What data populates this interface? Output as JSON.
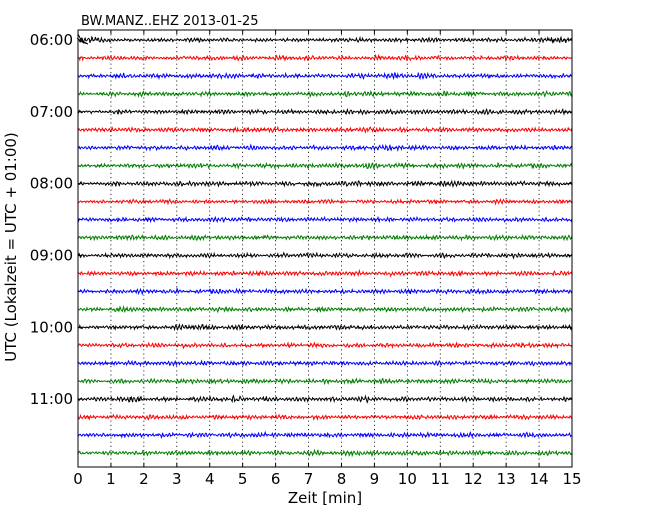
{
  "chart_data": {
    "type": "line",
    "title": "BW.MANZ..EHZ 2013-01-25",
    "xlabel": "Zeit  [min]",
    "ylabel": "UTC (Lokalzeit = UTC + 01:00)",
    "xlim": [
      0,
      15
    ],
    "x_ticks": [
      "0",
      "1",
      "2",
      "3",
      "4",
      "5",
      "6",
      "7",
      "8",
      "9",
      "10",
      "11",
      "12",
      "13",
      "14",
      "15"
    ],
    "y_ticks": [
      "06:00",
      "07:00",
      "08:00",
      "09:00",
      "10:00",
      "11:00"
    ],
    "y_tick_rows": [
      0,
      4,
      8,
      12,
      16,
      20
    ],
    "rows": 24,
    "trace_colors": [
      "#000000",
      "#ff0000",
      "#0000ff",
      "#007f00"
    ],
    "grid_x": true,
    "trace_amplitude_seed": [
      [
        0.9,
        0.4,
        0.5,
        0.6,
        0.5,
        0.4,
        0.5,
        0.5,
        0.6,
        0.5,
        0.6,
        0.5,
        0.6,
        0.5,
        0.9
      ],
      [
        0.5,
        0.6,
        0.5,
        0.6,
        0.6,
        0.5,
        0.6,
        0.6,
        0.5,
        0.6,
        0.6,
        0.5,
        0.6,
        0.6,
        0.5
      ],
      [
        0.5,
        0.7,
        0.6,
        0.6,
        0.7,
        0.6,
        0.6,
        0.5,
        0.6,
        0.8,
        0.7,
        0.6,
        0.7,
        0.5,
        0.6
      ],
      [
        0.5,
        0.7,
        0.6,
        0.6,
        0.5,
        0.6,
        0.6,
        0.6,
        0.8,
        0.6,
        0.6,
        0.7,
        0.6,
        0.6,
        0.7
      ],
      [
        0.5,
        0.7,
        0.5,
        0.6,
        0.6,
        0.6,
        0.6,
        0.6,
        0.7,
        0.6,
        0.6,
        0.6,
        0.7,
        0.6,
        0.6
      ],
      [
        0.5,
        0.6,
        0.6,
        0.6,
        0.6,
        0.7,
        0.6,
        0.6,
        0.7,
        0.6,
        0.6,
        0.6,
        0.6,
        0.6,
        0.6
      ],
      [
        0.5,
        0.6,
        0.6,
        0.6,
        0.6,
        0.6,
        0.6,
        0.6,
        0.6,
        0.8,
        0.6,
        0.6,
        0.6,
        0.6,
        0.6
      ],
      [
        0.5,
        0.6,
        0.6,
        0.7,
        0.6,
        0.6,
        0.6,
        0.6,
        0.8,
        0.7,
        0.6,
        0.7,
        0.6,
        0.7,
        0.6
      ],
      [
        0.5,
        0.6,
        0.6,
        0.7,
        0.6,
        0.6,
        0.6,
        0.7,
        0.8,
        0.6,
        0.7,
        0.8,
        0.6,
        0.6,
        0.6
      ],
      [
        0.4,
        0.5,
        0.6,
        0.5,
        0.5,
        0.5,
        0.5,
        0.6,
        0.5,
        0.5,
        0.6,
        0.5,
        0.6,
        0.5,
        0.5
      ],
      [
        0.5,
        0.6,
        0.6,
        0.6,
        0.7,
        0.6,
        0.6,
        0.6,
        0.6,
        0.6,
        0.6,
        0.6,
        0.6,
        0.6,
        0.6
      ],
      [
        0.5,
        0.7,
        0.6,
        0.7,
        0.6,
        0.6,
        0.6,
        0.6,
        0.6,
        0.6,
        0.6,
        0.6,
        0.6,
        0.6,
        0.6
      ],
      [
        0.5,
        0.6,
        0.6,
        0.6,
        0.6,
        0.6,
        0.6,
        0.6,
        0.6,
        0.6,
        0.6,
        0.6,
        0.6,
        0.6,
        0.6
      ],
      [
        0.5,
        0.6,
        0.6,
        0.6,
        0.6,
        0.6,
        0.6,
        0.6,
        0.6,
        0.6,
        0.6,
        0.6,
        0.6,
        0.6,
        0.6
      ],
      [
        0.5,
        0.6,
        0.6,
        0.6,
        0.7,
        0.6,
        0.6,
        0.6,
        0.6,
        0.6,
        0.6,
        0.6,
        0.6,
        0.6,
        0.6
      ],
      [
        0.5,
        0.7,
        0.6,
        0.6,
        0.6,
        0.6,
        0.6,
        0.6,
        0.6,
        0.6,
        0.6,
        0.6,
        0.6,
        0.6,
        0.6
      ],
      [
        0.5,
        0.6,
        0.6,
        0.8,
        0.6,
        0.6,
        0.6,
        0.6,
        0.7,
        0.6,
        0.6,
        0.6,
        0.6,
        0.6,
        0.6
      ],
      [
        0.5,
        0.6,
        0.6,
        0.6,
        0.6,
        0.6,
        0.6,
        0.6,
        0.6,
        0.6,
        0.6,
        0.6,
        0.6,
        0.7,
        0.6
      ],
      [
        0.5,
        0.6,
        0.6,
        0.6,
        0.6,
        0.6,
        0.6,
        0.6,
        0.6,
        0.6,
        0.6,
        0.6,
        0.6,
        0.6,
        0.6
      ],
      [
        0.5,
        0.6,
        0.6,
        0.6,
        0.6,
        0.6,
        0.6,
        0.6,
        0.6,
        0.7,
        0.6,
        0.6,
        0.6,
        0.6,
        0.6
      ],
      [
        0.5,
        0.8,
        0.6,
        0.6,
        0.8,
        0.6,
        0.6,
        0.6,
        0.7,
        0.6,
        0.6,
        0.6,
        0.6,
        0.6,
        0.6
      ],
      [
        0.5,
        0.6,
        0.6,
        0.6,
        0.6,
        0.6,
        0.6,
        0.6,
        0.6,
        0.6,
        0.6,
        0.6,
        0.6,
        0.6,
        0.6
      ],
      [
        0.5,
        0.6,
        0.6,
        0.6,
        0.6,
        0.6,
        0.6,
        0.6,
        0.6,
        0.6,
        0.6,
        0.6,
        0.6,
        0.6,
        0.6
      ],
      [
        0.5,
        0.6,
        0.6,
        0.6,
        0.6,
        0.6,
        0.6,
        0.7,
        0.8,
        0.7,
        0.6,
        0.6,
        0.6,
        0.6,
        0.6
      ]
    ]
  }
}
